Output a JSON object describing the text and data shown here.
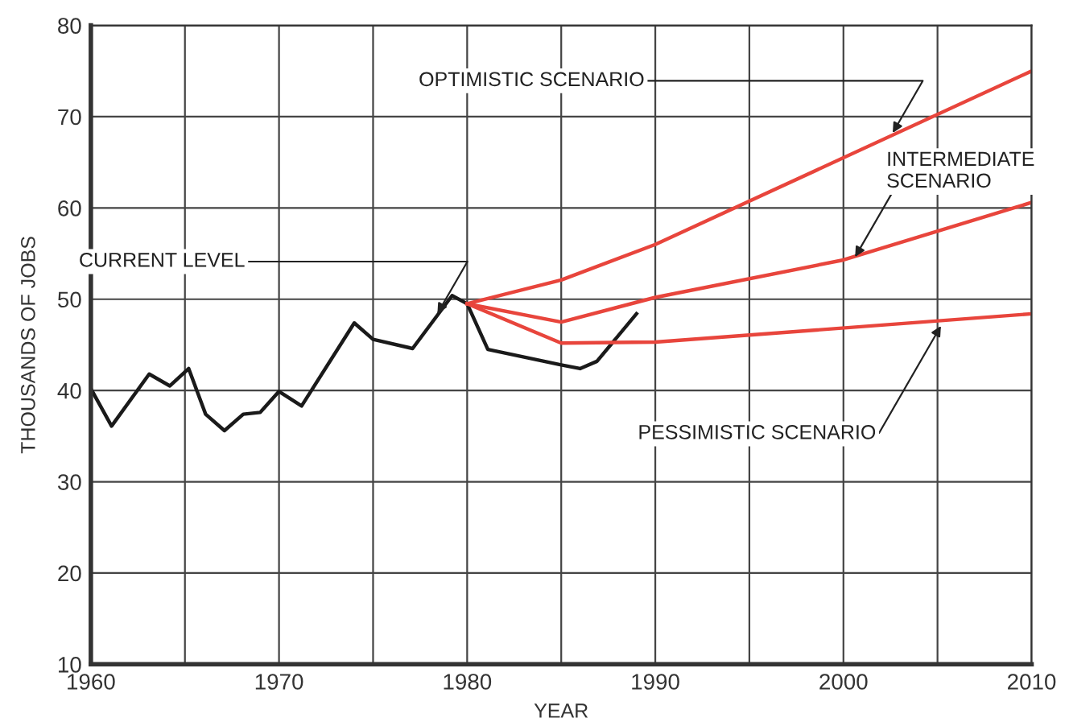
{
  "chart_data": {
    "type": "line",
    "xlabel": "YEAR",
    "ylabel": "THOUSANDS OF JOBS",
    "xlim": [
      1960,
      2010
    ],
    "ylim": [
      10,
      80
    ],
    "xticks": [
      1960,
      {
        "value": 1965,
        "label": null
      },
      1970,
      {
        "value": 1975,
        "label": null
      },
      1980,
      {
        "value": 1985,
        "label": null
      },
      1990,
      {
        "value": 1995,
        "label": null
      },
      2000,
      {
        "value": 2005,
        "label": null
      },
      2010
    ],
    "yticks": [
      10,
      20,
      30,
      40,
      50,
      60,
      70,
      80
    ],
    "grid": true,
    "marker": "none",
    "line_style": "solid",
    "series": [
      {
        "color": "#1a1a1a",
        "x": [
          1960,
          1961.1,
          1963.1,
          1964.2,
          1965.2,
          1966.1,
          1967.1,
          1968.1,
          1969,
          1970,
          1971.2,
          1974,
          1975,
          1977.1,
          1979.2,
          1980,
          1981.1,
          1985,
          1986,
          1986.9,
          1989
        ],
        "values": [
          40.2,
          36.1,
          41.8,
          40.5,
          42.4,
          37.4,
          35.6,
          37.4,
          37.6,
          39.9,
          38.3,
          47.4,
          45.6,
          44.6,
          50.4,
          49.5,
          44.5,
          42.8,
          42.4,
          43.2,
          48.4
        ]
      },
      {
        "color": "#e8453c",
        "x": [
          1980,
          1985,
          1990,
          2010
        ],
        "values": [
          49.5,
          52.1,
          56,
          75
        ]
      },
      {
        "color": "#e8453c",
        "x": [
          1980,
          1985,
          1990,
          2000,
          2010
        ],
        "values": [
          49.5,
          47.5,
          50.2,
          54.3,
          60.6
        ]
      },
      {
        "color": "#e8453c",
        "x": [
          1980,
          1985,
          1990,
          2010
        ],
        "values": [
          49.5,
          45.2,
          45.3,
          48.4
        ]
      }
    ],
    "annotations": [
      {
        "text": "CURRENT LEVEL",
        "x": 1978.3,
        "y": 48
      },
      {
        "text": "OPTIMISTIC SCENARIO",
        "x": 2002.5,
        "y": 67.8
      },
      {
        "text": "INTERMEDIATE\nSCENARIO",
        "x": 2000.5,
        "y": 54.2
      },
      {
        "text": "PESSIMISTIC SCENARIO",
        "x": 2005.3,
        "y": 47.5
      }
    ]
  }
}
